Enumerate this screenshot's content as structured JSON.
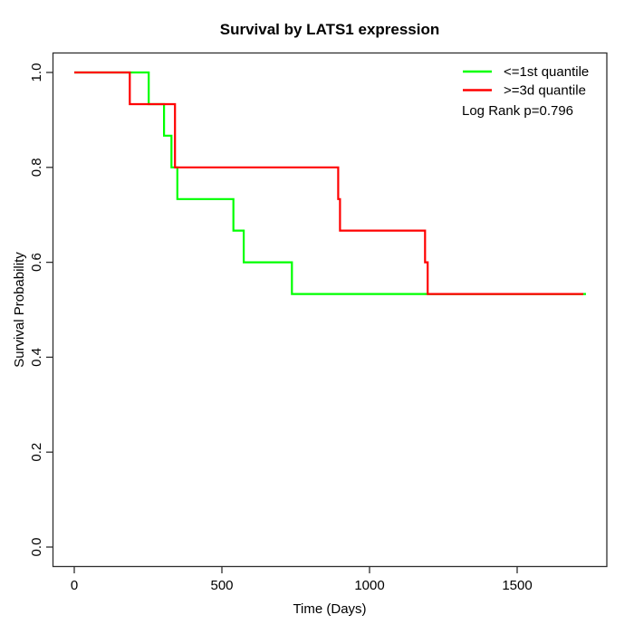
{
  "figure": {
    "background": "#ffffff"
  },
  "chart_data": {
    "type": "line",
    "subtype": "kaplan-meier-step",
    "title": "Survival by LATS1 expression",
    "xlabel": "Time (Days)",
    "ylabel": "Survival Probability",
    "xlim": [
      0,
      1800
    ],
    "ylim": [
      0.0,
      1.0
    ],
    "xticks": [
      0,
      500,
      1000,
      1500
    ],
    "xtick_labels": [
      "0",
      "500",
      "1000",
      "1500"
    ],
    "yticks": [
      0.0,
      0.2,
      0.4,
      0.6,
      0.8,
      1.0
    ],
    "ytick_labels": [
      "0.0",
      "0.2",
      "0.4",
      "0.6",
      "0.8",
      "1.0"
    ],
    "grid": false,
    "box": true,
    "legend_position": "top-right",
    "annotation": "Log Rank p=0.796",
    "series": [
      {
        "name": "<=1st quantile",
        "color": "#00ff00",
        "steps": [
          [
            0,
            1.0
          ],
          [
            252,
            0.9333
          ],
          [
            304,
            0.8667
          ],
          [
            329,
            0.8
          ],
          [
            349,
            0.7333
          ],
          [
            539,
            0.6667
          ],
          [
            574,
            0.6
          ],
          [
            737,
            0.5333
          ]
        ],
        "end_time": 1733
      },
      {
        "name": ">=3d quantile",
        "color": "#ff0000",
        "steps": [
          [
            0,
            1.0
          ],
          [
            188,
            0.9333
          ],
          [
            341,
            0.8
          ],
          [
            894,
            0.7333
          ],
          [
            900,
            0.6667
          ],
          [
            1188,
            0.6
          ],
          [
            1197,
            0.5333
          ]
        ],
        "end_time": 1724
      }
    ]
  }
}
